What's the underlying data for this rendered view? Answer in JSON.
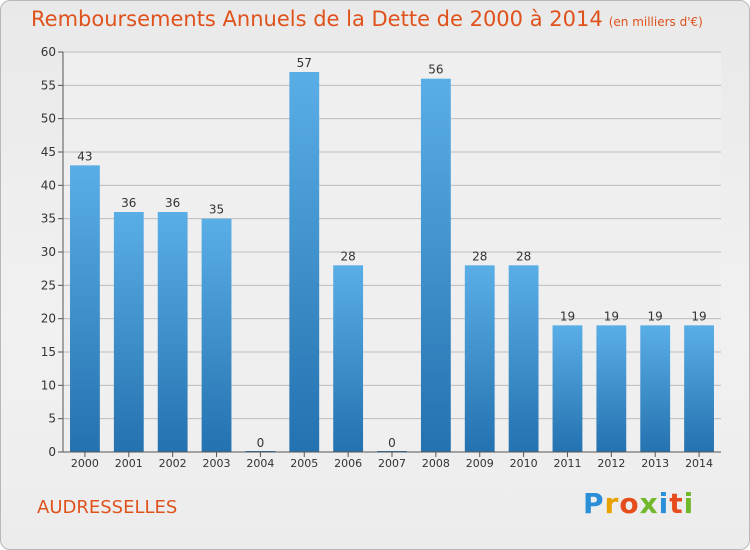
{
  "header": {
    "title": "Remboursements Annuels de la Dette de 2000 à 2014",
    "subtitle": "(en milliers d'€)"
  },
  "commune": "AUDRESSELLES",
  "logo": {
    "letters": [
      "P",
      "r",
      "o",
      "x",
      "i",
      "t",
      "i"
    ]
  },
  "colors": {
    "bar_light": "#5aaee6",
    "bar_dark": "#2472b0",
    "title": "#e0521c",
    "grid": "#bdbdbd"
  },
  "chart_data": {
    "type": "bar",
    "categories": [
      "2000",
      "2001",
      "2002",
      "2003",
      "2004",
      "2005",
      "2006",
      "2007",
      "2008",
      "2009",
      "2010",
      "2011",
      "2012",
      "2013",
      "2014"
    ],
    "values": [
      43,
      36,
      36,
      35,
      0,
      57,
      28,
      0,
      56,
      28,
      28,
      19,
      19,
      19,
      19
    ],
    "title": "Remboursements Annuels de la Dette de 2000 à 2014",
    "subtitle": "(en milliers d'€)",
    "xlabel": "",
    "ylabel": "",
    "ylim": [
      0,
      60
    ],
    "yticks": [
      0,
      5,
      10,
      15,
      20,
      25,
      30,
      35,
      40,
      45,
      50,
      55,
      60
    ],
    "grid": true
  }
}
